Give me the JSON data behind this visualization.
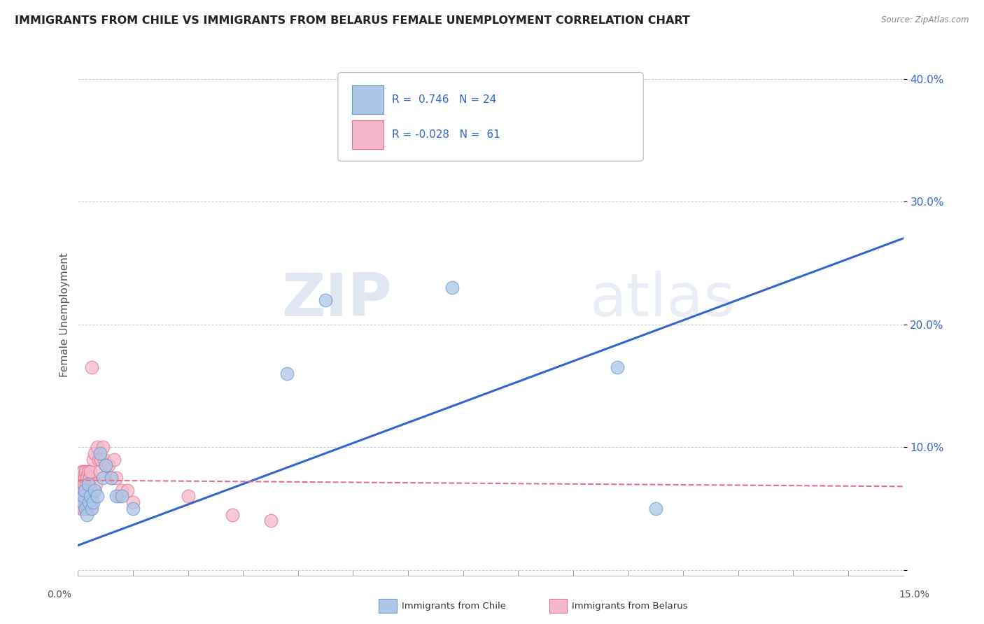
{
  "title": "IMMIGRANTS FROM CHILE VS IMMIGRANTS FROM BELARUS FEMALE UNEMPLOYMENT CORRELATION CHART",
  "source": "Source: ZipAtlas.com",
  "ylabel": "Female Unemployment",
  "xlim": [
    0.0,
    0.15
  ],
  "ylim": [
    -0.005,
    0.42
  ],
  "yticks": [
    0.0,
    0.1,
    0.2,
    0.3,
    0.4
  ],
  "ytick_labels": [
    "",
    "10.0%",
    "20.0%",
    "30.0%",
    "40.0%"
  ],
  "chile_color": "#adc6e8",
  "chile_edge": "#6699cc",
  "belarus_color": "#f5b8cb",
  "belarus_edge": "#e07090",
  "trend_chile_color": "#3366cc",
  "trend_belarus_color": "#e07090",
  "legend_r_chile": "R =  0.746   N = 24",
  "legend_r_belarus": "R = -0.028   N =  61",
  "chile_scatter_x": [
    0.0008,
    0.001,
    0.0012,
    0.0014,
    0.0016,
    0.0018,
    0.002,
    0.0022,
    0.0025,
    0.0028,
    0.003,
    0.0035,
    0.004,
    0.0045,
    0.005,
    0.006,
    0.007,
    0.008,
    0.01,
    0.038,
    0.045,
    0.068,
    0.098,
    0.105
  ],
  "chile_scatter_y": [
    0.055,
    0.06,
    0.065,
    0.05,
    0.045,
    0.07,
    0.055,
    0.06,
    0.05,
    0.055,
    0.065,
    0.06,
    0.095,
    0.075,
    0.085,
    0.075,
    0.06,
    0.06,
    0.05,
    0.16,
    0.22,
    0.23,
    0.165,
    0.05
  ],
  "belarus_scatter_x": [
    0.0002,
    0.0003,
    0.0004,
    0.0005,
    0.0005,
    0.0006,
    0.0007,
    0.0007,
    0.0008,
    0.0008,
    0.0009,
    0.0009,
    0.001,
    0.001,
    0.001,
    0.0011,
    0.0011,
    0.0012,
    0.0012,
    0.0013,
    0.0013,
    0.0014,
    0.0015,
    0.0015,
    0.0016,
    0.0016,
    0.0017,
    0.0018,
    0.0018,
    0.0019,
    0.002,
    0.002,
    0.0021,
    0.0022,
    0.0022,
    0.0023,
    0.0024,
    0.0025,
    0.0025,
    0.0028,
    0.003,
    0.003,
    0.0032,
    0.0035,
    0.0038,
    0.004,
    0.0042,
    0.0045,
    0.0048,
    0.005,
    0.0055,
    0.006,
    0.0065,
    0.007,
    0.0075,
    0.008,
    0.009,
    0.01,
    0.02,
    0.028,
    0.035
  ],
  "belarus_scatter_y": [
    0.065,
    0.06,
    0.055,
    0.07,
    0.075,
    0.05,
    0.065,
    0.08,
    0.055,
    0.07,
    0.06,
    0.075,
    0.05,
    0.065,
    0.08,
    0.055,
    0.07,
    0.06,
    0.075,
    0.05,
    0.065,
    0.08,
    0.055,
    0.07,
    0.06,
    0.075,
    0.05,
    0.065,
    0.08,
    0.055,
    0.07,
    0.06,
    0.075,
    0.05,
    0.065,
    0.08,
    0.055,
    0.06,
    0.165,
    0.09,
    0.065,
    0.095,
    0.07,
    0.1,
    0.09,
    0.08,
    0.09,
    0.1,
    0.09,
    0.085,
    0.085,
    0.075,
    0.09,
    0.075,
    0.06,
    0.065,
    0.065,
    0.055,
    0.06,
    0.045,
    0.04
  ],
  "bg_color": "#ffffff",
  "grid_color": "#cccccc",
  "title_fontsize": 11.5,
  "axis_fontsize": 10,
  "legend_fontsize": 11,
  "chile_trend_x0": 0.0,
  "chile_trend_y0": 0.02,
  "chile_trend_x1": 0.15,
  "chile_trend_y1": 0.27,
  "belarus_trend_x0": 0.0,
  "belarus_trend_y0": 0.073,
  "belarus_trend_x1": 0.15,
  "belarus_trend_y1": 0.068
}
